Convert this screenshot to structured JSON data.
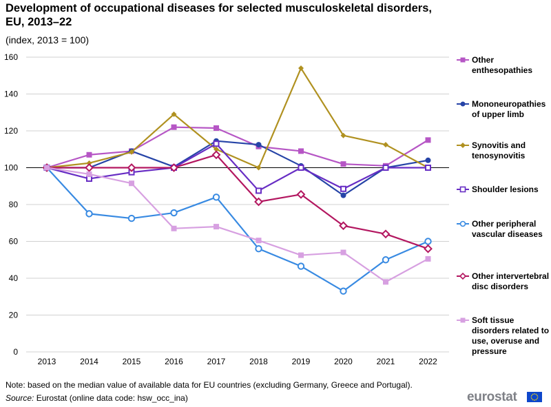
{
  "title": "Development of occupational diseases for selected musculoskeletal disorders, EU, 2013–22",
  "subtitle": "(index, 2013 = 100)",
  "note": "Note: based on the median value of available data for EU countries (excluding Germany, Greece and Portugal).",
  "source_label": "Source:",
  "source_text": " Eurostat (online data code: hsw_occ_ina)",
  "logo_text": "eurostat",
  "chart_data": {
    "type": "line",
    "title": "Development of occupational diseases for selected musculoskeletal disorders, EU, 2013–22",
    "subtitle": "(index, 2013 = 100)",
    "xlabel": "",
    "ylabel": "",
    "ylim": [
      0,
      160
    ],
    "yticks": [
      0,
      20,
      40,
      60,
      80,
      100,
      120,
      140,
      160
    ],
    "grid": true,
    "legend_position": "right",
    "categories": [
      "2013",
      "2014",
      "2015",
      "2016",
      "2017",
      "2018",
      "2019",
      "2020",
      "2021",
      "2022"
    ],
    "series": [
      {
        "name": "Other enthesopathies",
        "color": "#b656c5",
        "marker": "square-filled",
        "values": [
          100,
          107,
          109,
          122,
          121.5,
          111.5,
          109,
          102,
          101,
          115
        ]
      },
      {
        "name": "Mononeuropathies of upper limb",
        "color": "#2644a7",
        "marker": "circle-filled",
        "values": [
          100,
          100,
          109,
          100.5,
          114.5,
          112.5,
          101,
          85,
          100,
          104
        ]
      },
      {
        "name": "Synovitis and tenosynovitis",
        "color": "#b09120",
        "marker": "diamond-filled",
        "values": [
          100,
          102.5,
          108.5,
          129,
          110,
          100,
          154,
          117.5,
          112.5,
          100
        ]
      },
      {
        "name": "Shoulder lesions",
        "color": "#672dc4",
        "marker": "square-open",
        "values": [
          100,
          94,
          97.5,
          100,
          113,
          87.5,
          100,
          88.5,
          100,
          100
        ]
      },
      {
        "name": "Other peripheral vascular diseases",
        "color": "#388ae2",
        "marker": "circle-open",
        "values": [
          100,
          75,
          72.5,
          75.5,
          84,
          56,
          46.5,
          33,
          50,
          60
        ]
      },
      {
        "name": "Other intervertebral disc disorders",
        "color": "#b31760",
        "marker": "diamond-open",
        "values": [
          100,
          100,
          100,
          100,
          107,
          81.5,
          85.5,
          68.5,
          64,
          56
        ]
      },
      {
        "name": "Soft tissue disorders related to use, overuse and pressure",
        "color": "#d7a0e1",
        "marker": "square-filled",
        "values": [
          100,
          96.5,
          91.5,
          67,
          68,
          60.5,
          52.5,
          54,
          38,
          50.5
        ]
      }
    ]
  },
  "legend": [
    {
      "label": "Other enthesopathies"
    },
    {
      "label": "Mononeuropathies of upper limb"
    },
    {
      "label": "Synovitis and tenosynovitis"
    },
    {
      "label": "Shoulder lesions"
    },
    {
      "label": "Other peripheral vascular diseases"
    },
    {
      "label": "Other intervertebral disc disorders"
    },
    {
      "label": "Soft tissue disorders related to use, overuse and pressure"
    }
  ],
  "colors": {
    "flag": "#0e47cb",
    "logo": "#7f8187"
  }
}
